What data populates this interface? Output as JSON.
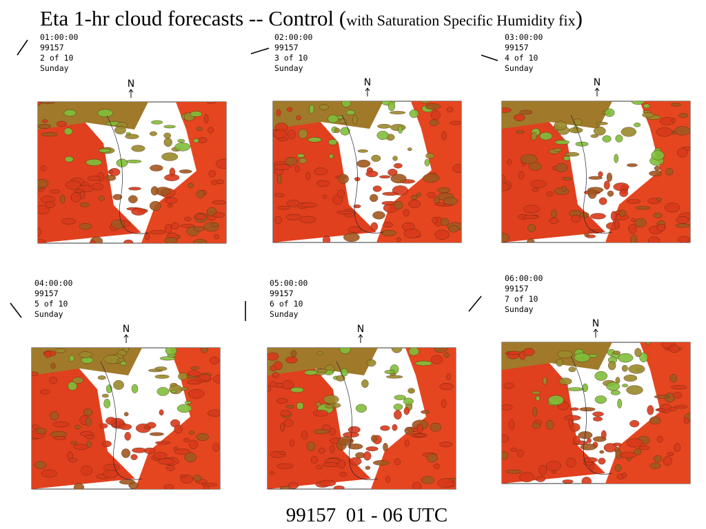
{
  "title": {
    "main": "Eta 1-hr cloud forecasts -- Control (",
    "note": "with Saturation Specific Humidity fix",
    "close": ")"
  },
  "panels": [
    {
      "time": "01:00:00",
      "date": "99157",
      "frame": "2 of 10",
      "day": "Sunday",
      "north": "N"
    },
    {
      "time": "02:00:00",
      "date": "99157",
      "frame": "3 of 10",
      "day": "Sunday",
      "north": "N"
    },
    {
      "time": "03:00:00",
      "date": "99157",
      "frame": "4 of 10",
      "day": "Sunday",
      "north": "N"
    },
    {
      "time": "04:00:00",
      "date": "99157",
      "frame": "5 of 10",
      "day": "Sunday",
      "north": "N"
    },
    {
      "time": "05:00:00",
      "date": "99157",
      "frame": "6 of 10",
      "day": "Sunday",
      "north": "N"
    },
    {
      "time": "06:00:00",
      "date": "99157",
      "frame": "7 of 10",
      "day": "Sunday",
      "north": "N"
    }
  ],
  "footer": "99157  01 - 06 UTC"
}
